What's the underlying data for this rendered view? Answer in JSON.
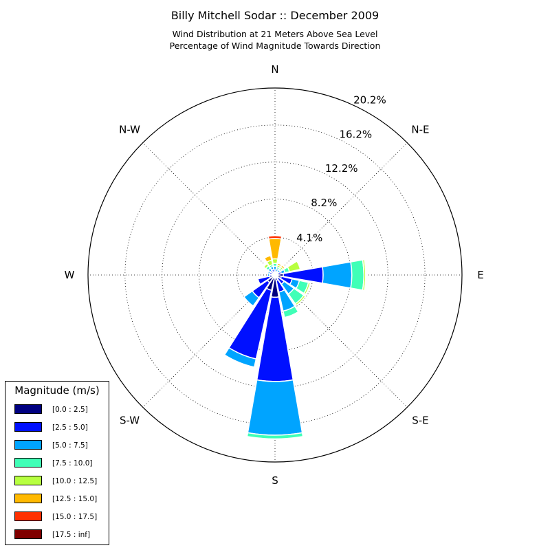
{
  "chart_data": {
    "type": "windrose",
    "title": "Billy Mitchell Sodar :: December 2009",
    "subtitle_lines": [
      "Wind Distribution at 21 Meters Above Sea Level",
      "Percentage of Wind Magnitude Towards Direction"
    ],
    "directions": [
      "N",
      "NNE",
      "NE",
      "ENE",
      "E",
      "ESE",
      "SE",
      "SSE",
      "S",
      "SSW",
      "SW",
      "WSW",
      "W",
      "WNW",
      "NW",
      "NNW"
    ],
    "direction_degrees": [
      0,
      22.5,
      45,
      67.5,
      90,
      112.5,
      135,
      157.5,
      180,
      202.5,
      225,
      247.5,
      270,
      292.5,
      315,
      337.5
    ],
    "compass_labels": [
      {
        "text": "N",
        "deg": 0
      },
      {
        "text": "N-E",
        "deg": 45
      },
      {
        "text": "E",
        "deg": 90
      },
      {
        "text": "S-E",
        "deg": 135
      },
      {
        "text": "S",
        "deg": 180
      },
      {
        "text": "S-W",
        "deg": 225
      },
      {
        "text": "W",
        "deg": 270
      },
      {
        "text": "N-W",
        "deg": 315
      }
    ],
    "radial_ticks": [
      4.1,
      8.2,
      12.2,
      16.2,
      20.2
    ],
    "radial_tick_labels": [
      "4.1%",
      "8.2%",
      "12.2%",
      "16.2%",
      "20.2%"
    ],
    "r_max": 20.2,
    "grid": true,
    "legend": {
      "title": "Magnitude (m/s)",
      "placement": "bottom-left"
    },
    "series": [
      {
        "name": "[0.0 : 2.5]",
        "color": "#000080",
        "values": [
          0.35,
          0.2,
          0.2,
          0.3,
          0.9,
          0.7,
          0.4,
          0.6,
          2.4,
          1.7,
          1.0,
          0.6,
          0.3,
          0.3,
          0.3,
          0.35
        ]
      },
      {
        "name": "[2.5 : 5.0]",
        "color": "#0010ff",
        "values": [
          0.2,
          0.2,
          0.2,
          0.4,
          4.3,
          1.2,
          0.8,
          1.3,
          9.1,
          7.6,
          2.0,
          1.3,
          0.3,
          0.3,
          0.3,
          0.3
        ]
      },
      {
        "name": "[5.0 : 7.5]",
        "color": "#00a4ff",
        "values": [
          0.4,
          0.3,
          0.3,
          0.4,
          3.1,
          0.8,
          1.3,
          2.1,
          5.8,
          0.9,
          1.1,
          0.1,
          0.2,
          0.2,
          0.3,
          0.3
        ]
      },
      {
        "name": "[7.5 : 10.0]",
        "color": "#40ffb7",
        "values": [
          0.3,
          0.2,
          0.2,
          0.5,
          1.3,
          1.0,
          1.3,
          0.7,
          0.4,
          0.0,
          0.0,
          0.0,
          0.0,
          0.1,
          0.3,
          0.2
        ]
      },
      {
        "name": "[10.0 : 12.5]",
        "color": "#b7ff40",
        "values": [
          0.5,
          0.2,
          0.2,
          1.2,
          0.2,
          0.2,
          0.2,
          0.0,
          0.0,
          0.0,
          0.0,
          0.0,
          0.0,
          0.0,
          0.3,
          0.5
        ]
      },
      {
        "name": "[12.5 : 15.0]",
        "color": "#ffb900",
        "values": [
          2.2,
          0.2,
          0.2,
          0.1,
          0.1,
          0.0,
          0.0,
          0.0,
          0.0,
          0.0,
          0.0,
          0.0,
          0.0,
          0.0,
          0.1,
          0.5
        ]
      },
      {
        "name": "[15.0 : 17.5]",
        "color": "#ff3000",
        "values": [
          0.3,
          0.0,
          0.1,
          0.0,
          0.0,
          0.0,
          0.0,
          0.0,
          0.0,
          0.0,
          0.0,
          0.0,
          0.0,
          0.0,
          0.0,
          0.0
        ]
      },
      {
        "name": "[17.5 : inf]",
        "color": "#800000",
        "values": [
          0.0,
          0.0,
          0.0,
          0.0,
          0.0,
          0.0,
          0.0,
          0.0,
          0.0,
          0.0,
          0.0,
          0.0,
          0.0,
          0.0,
          0.0,
          0.0
        ]
      }
    ]
  }
}
